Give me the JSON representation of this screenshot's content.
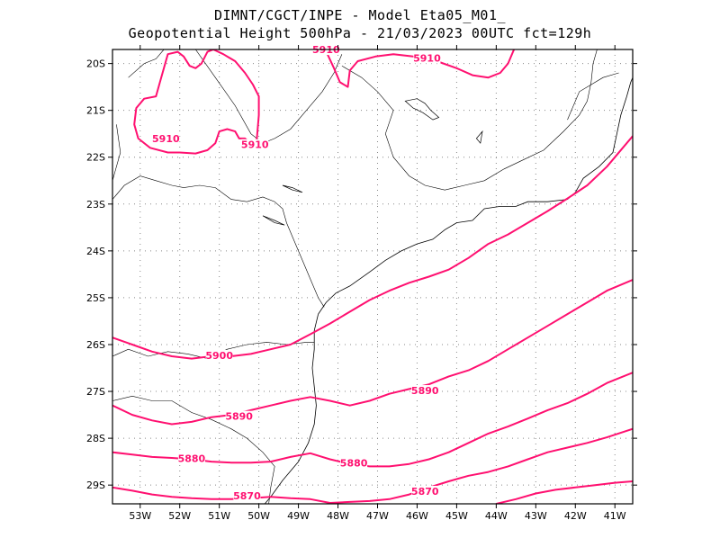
{
  "title": {
    "line1": "DIMNT/CGCT/INPE  -   Model Eta05_M01_",
    "line2": "Geopotential Height 500hPa -   21/03/2023 00UTC fct=129h"
  },
  "colors": {
    "contour": "#ff1070",
    "coast": "#000000",
    "grid": "#888888"
  },
  "axes": {
    "lon_ticks": [
      "53W",
      "52W",
      "51W",
      "50W",
      "49W",
      "48W",
      "47W",
      "46W",
      "45W",
      "44W",
      "43W",
      "42W",
      "41W"
    ],
    "lat_ticks": [
      "20S",
      "21S",
      "22S",
      "23S",
      "24S",
      "25S",
      "26S",
      "27S",
      "28S",
      "29S"
    ],
    "lon_range": [
      -53.7,
      -40.55
    ],
    "lat_range": [
      -29.4,
      -19.7
    ]
  },
  "contour_labels": [
    {
      "text": "5910",
      "lon": -52.35,
      "lat": -21.62
    },
    {
      "text": "5910",
      "lon": -50.1,
      "lat": -21.75
    },
    {
      "text": "5910",
      "lon": -48.3,
      "lat": -19.72
    },
    {
      "text": "5910",
      "lon": -45.75,
      "lat": -19.9
    },
    {
      "text": "5900",
      "lon": -51.0,
      "lat": -26.25
    },
    {
      "text": "5890",
      "lon": -45.8,
      "lat": -27.0
    },
    {
      "text": "5890",
      "lon": -50.5,
      "lat": -27.55
    },
    {
      "text": "5880",
      "lon": -51.7,
      "lat": -28.45
    },
    {
      "text": "5880",
      "lon": -47.6,
      "lat": -28.55
    },
    {
      "text": "5870",
      "lon": -50.3,
      "lat": -29.25
    },
    {
      "text": "5870",
      "lon": -45.8,
      "lat": -29.15
    }
  ],
  "contours": [
    {
      "value": 5910,
      "points": [
        [
          -51.15,
          -19.7
        ],
        [
          -51.3,
          -19.75
        ],
        [
          -51.45,
          -20.0
        ],
        [
          -51.6,
          -20.1
        ],
        [
          -51.75,
          -20.05
        ],
        [
          -51.9,
          -19.85
        ],
        [
          -52.05,
          -19.75
        ],
        [
          -52.3,
          -19.8
        ],
        [
          -52.5,
          -20.4
        ],
        [
          -52.6,
          -20.7
        ],
        [
          -52.9,
          -20.75
        ],
        [
          -53.1,
          -20.95
        ],
        [
          -53.15,
          -21.3
        ],
        [
          -53.05,
          -21.6
        ],
        [
          -52.75,
          -21.8
        ],
        [
          -52.3,
          -21.9
        ],
        [
          -52.0,
          -21.9
        ],
        [
          -51.6,
          -21.92
        ],
        [
          -51.3,
          -21.85
        ],
        [
          -51.1,
          -21.7
        ],
        [
          -51.0,
          -21.45
        ],
        [
          -50.8,
          -21.4
        ],
        [
          -50.6,
          -21.45
        ],
        [
          -50.5,
          -21.6
        ],
        [
          -50.35,
          -21.6
        ],
        [
          -50.15,
          -21.75
        ],
        [
          -50.05,
          -21.6
        ],
        [
          -50.0,
          -21.1
        ],
        [
          -50.0,
          -20.7
        ],
        [
          -50.15,
          -20.45
        ],
        [
          -50.35,
          -20.2
        ],
        [
          -50.6,
          -19.95
        ],
        [
          -50.9,
          -19.8
        ],
        [
          -51.15,
          -19.7
        ]
      ]
    },
    {
      "value": 5910,
      "points": [
        [
          -48.35,
          -19.65
        ],
        [
          -48.1,
          -20.1
        ],
        [
          -47.95,
          -20.4
        ],
        [
          -47.75,
          -20.5
        ],
        [
          -47.7,
          -20.15
        ],
        [
          -47.5,
          -19.95
        ],
        [
          -47.05,
          -19.85
        ],
        [
          -46.6,
          -19.8
        ],
        [
          -46.1,
          -19.85
        ],
        [
          -45.5,
          -19.95
        ],
        [
          -45.0,
          -20.1
        ],
        [
          -44.6,
          -20.25
        ],
        [
          -44.2,
          -20.3
        ],
        [
          -43.9,
          -20.2
        ],
        [
          -43.7,
          -20.0
        ],
        [
          -43.55,
          -19.7
        ]
      ]
    },
    {
      "value": 5900,
      "points": [
        [
          -53.7,
          -25.85
        ],
        [
          -53.2,
          -26.0
        ],
        [
          -52.7,
          -26.15
        ],
        [
          -52.2,
          -26.25
        ],
        [
          -51.7,
          -26.3
        ],
        [
          -51.2,
          -26.25
        ],
        [
          -50.7,
          -26.25
        ],
        [
          -50.2,
          -26.2
        ],
        [
          -49.7,
          -26.1
        ],
        [
          -49.2,
          -26.0
        ],
        [
          -48.7,
          -25.78
        ],
        [
          -48.2,
          -25.55
        ],
        [
          -47.7,
          -25.3
        ],
        [
          -47.2,
          -25.05
        ],
        [
          -46.7,
          -24.85
        ],
        [
          -46.2,
          -24.68
        ],
        [
          -45.7,
          -24.55
        ],
        [
          -45.2,
          -24.4
        ],
        [
          -44.7,
          -24.15
        ],
        [
          -44.2,
          -23.85
        ],
        [
          -43.7,
          -23.65
        ],
        [
          -43.2,
          -23.4
        ],
        [
          -42.7,
          -23.15
        ],
        [
          -42.2,
          -22.88
        ],
        [
          -41.7,
          -22.6
        ],
        [
          -41.2,
          -22.2
        ],
        [
          -40.8,
          -21.8
        ],
        [
          -40.55,
          -21.55
        ]
      ]
    },
    {
      "value": 5890,
      "points": [
        [
          -53.7,
          -27.3
        ],
        [
          -53.2,
          -27.5
        ],
        [
          -52.7,
          -27.62
        ],
        [
          -52.2,
          -27.7
        ],
        [
          -51.7,
          -27.65
        ],
        [
          -51.2,
          -27.55
        ],
        [
          -50.7,
          -27.5
        ],
        [
          -50.2,
          -27.4
        ],
        [
          -49.7,
          -27.3
        ],
        [
          -49.2,
          -27.2
        ],
        [
          -48.7,
          -27.12
        ],
        [
          -48.2,
          -27.2
        ],
        [
          -47.7,
          -27.3
        ],
        [
          -47.2,
          -27.2
        ],
        [
          -46.7,
          -27.05
        ],
        [
          -46.2,
          -26.95
        ],
        [
          -45.7,
          -26.85
        ],
        [
          -45.2,
          -26.68
        ],
        [
          -44.7,
          -26.55
        ],
        [
          -44.2,
          -26.35
        ],
        [
          -43.7,
          -26.1
        ],
        [
          -43.2,
          -25.85
        ],
        [
          -42.7,
          -25.6
        ],
        [
          -42.2,
          -25.35
        ],
        [
          -41.7,
          -25.1
        ],
        [
          -41.2,
          -24.85
        ],
        [
          -40.55,
          -24.62
        ]
      ]
    },
    {
      "value": 5880,
      "points": [
        [
          -53.7,
          -28.3
        ],
        [
          -53.2,
          -28.35
        ],
        [
          -52.7,
          -28.4
        ],
        [
          -52.2,
          -28.42
        ],
        [
          -51.7,
          -28.45
        ],
        [
          -51.2,
          -28.5
        ],
        [
          -50.7,
          -28.52
        ],
        [
          -50.2,
          -28.52
        ],
        [
          -49.7,
          -28.5
        ],
        [
          -49.2,
          -28.4
        ],
        [
          -48.7,
          -28.32
        ],
        [
          -48.2,
          -28.45
        ],
        [
          -47.7,
          -28.55
        ],
        [
          -47.2,
          -28.6
        ],
        [
          -46.7,
          -28.6
        ],
        [
          -46.2,
          -28.55
        ],
        [
          -45.7,
          -28.45
        ],
        [
          -45.2,
          -28.3
        ],
        [
          -44.7,
          -28.1
        ],
        [
          -44.2,
          -27.9
        ],
        [
          -43.7,
          -27.75
        ],
        [
          -43.2,
          -27.58
        ],
        [
          -42.7,
          -27.4
        ],
        [
          -42.2,
          -27.25
        ],
        [
          -41.7,
          -27.05
        ],
        [
          -41.2,
          -26.82
        ],
        [
          -40.55,
          -26.6
        ]
      ]
    },
    {
      "value": 5870,
      "points": [
        [
          -53.7,
          -29.05
        ],
        [
          -53.2,
          -29.12
        ],
        [
          -52.7,
          -29.2
        ],
        [
          -52.2,
          -29.25
        ],
        [
          -51.7,
          -29.28
        ],
        [
          -51.2,
          -29.3
        ],
        [
          -50.7,
          -29.3
        ],
        [
          -50.2,
          -29.28
        ],
        [
          -49.7,
          -29.25
        ],
        [
          -49.2,
          -29.28
        ],
        [
          -48.7,
          -29.3
        ],
        [
          -48.2,
          -29.38
        ],
        [
          -47.7,
          -29.36
        ],
        [
          -47.2,
          -29.34
        ],
        [
          -46.7,
          -29.3
        ],
        [
          -46.2,
          -29.2
        ],
        [
          -45.7,
          -29.05
        ],
        [
          -45.2,
          -28.92
        ],
        [
          -44.7,
          -28.8
        ],
        [
          -44.2,
          -28.72
        ],
        [
          -43.7,
          -28.6
        ],
        [
          -43.2,
          -28.45
        ],
        [
          -42.7,
          -28.3
        ],
        [
          -42.2,
          -28.2
        ],
        [
          -41.7,
          -28.1
        ],
        [
          -41.2,
          -27.98
        ],
        [
          -40.55,
          -27.8
        ]
      ]
    },
    {
      "value": 5870,
      "points": [
        [
          -44.0,
          -29.4
        ],
        [
          -43.5,
          -29.3
        ],
        [
          -43.0,
          -29.18
        ],
        [
          -42.5,
          -29.1
        ],
        [
          -42.0,
          -29.05
        ],
        [
          -41.5,
          -29.0
        ],
        [
          -41.0,
          -28.95
        ],
        [
          -40.55,
          -28.92
        ]
      ]
    }
  ],
  "coastline": [
    [
      -48.5,
      -25.35
    ],
    [
      -48.3,
      -25.1
    ],
    [
      -48.05,
      -24.9
    ],
    [
      -47.7,
      -24.75
    ],
    [
      -47.2,
      -24.45
    ],
    [
      -46.8,
      -24.2
    ],
    [
      -46.4,
      -24.0
    ],
    [
      -46.0,
      -23.85
    ],
    [
      -45.6,
      -23.75
    ],
    [
      -45.3,
      -23.55
    ],
    [
      -45.0,
      -23.4
    ],
    [
      -44.6,
      -23.35
    ],
    [
      -44.3,
      -23.1
    ],
    [
      -43.9,
      -23.05
    ],
    [
      -43.5,
      -23.05
    ],
    [
      -43.2,
      -22.95
    ],
    [
      -42.7,
      -22.95
    ],
    [
      -42.2,
      -22.9
    ],
    [
      -42.0,
      -22.75
    ],
    [
      -41.8,
      -22.45
    ],
    [
      -41.4,
      -22.2
    ],
    [
      -41.05,
      -21.9
    ],
    [
      -40.95,
      -21.5
    ],
    [
      -40.85,
      -21.1
    ],
    [
      -40.7,
      -20.7
    ],
    [
      -40.6,
      -20.4
    ],
    [
      -40.55,
      -20.3
    ]
  ],
  "coastline_south": [
    [
      -48.5,
      -25.35
    ],
    [
      -48.6,
      -25.7
    ],
    [
      -48.6,
      -26.1
    ],
    [
      -48.65,
      -26.5
    ],
    [
      -48.6,
      -26.9
    ],
    [
      -48.55,
      -27.3
    ],
    [
      -48.6,
      -27.7
    ],
    [
      -48.75,
      -28.1
    ],
    [
      -49.0,
      -28.5
    ],
    [
      -49.4,
      -28.9
    ],
    [
      -49.7,
      -29.25
    ],
    [
      -49.85,
      -29.4
    ]
  ],
  "borders": [
    [
      [
        -53.7,
        -22.9
      ],
      [
        -53.4,
        -22.6
      ],
      [
        -53.0,
        -22.4
      ],
      [
        -52.6,
        -22.5
      ],
      [
        -52.2,
        -22.6
      ],
      [
        -51.9,
        -22.65
      ],
      [
        -51.5,
        -22.6
      ],
      [
        -51.1,
        -22.65
      ],
      [
        -50.7,
        -22.9
      ],
      [
        -50.3,
        -22.95
      ],
      [
        -49.9,
        -22.85
      ],
      [
        -49.6,
        -22.95
      ],
      [
        -49.4,
        -23.1
      ],
      [
        -49.3,
        -23.4
      ],
      [
        -49.1,
        -23.8
      ],
      [
        -48.9,
        -24.2
      ],
      [
        -48.7,
        -24.6
      ],
      [
        -48.5,
        -25.0
      ],
      [
        -48.35,
        -25.2
      ]
    ],
    [
      [
        -53.7,
        -26.25
      ],
      [
        -53.3,
        -26.1
      ],
      [
        -52.8,
        -26.25
      ],
      [
        -52.3,
        -26.15
      ],
      [
        -51.8,
        -26.2
      ],
      [
        -51.3,
        -26.3
      ],
      [
        -50.8,
        -26.1
      ],
      [
        -50.3,
        -26.0
      ],
      [
        -49.8,
        -25.95
      ],
      [
        -49.3,
        -26.0
      ],
      [
        -48.8,
        -25.95
      ],
      [
        -48.6,
        -25.95
      ]
    ],
    [
      [
        -53.7,
        -27.2
      ],
      [
        -53.2,
        -27.1
      ],
      [
        -52.7,
        -27.2
      ],
      [
        -52.2,
        -27.2
      ],
      [
        -51.7,
        -27.45
      ],
      [
        -51.2,
        -27.6
      ],
      [
        -50.7,
        -27.8
      ],
      [
        -50.3,
        -28.0
      ],
      [
        -49.9,
        -28.3
      ],
      [
        -49.6,
        -28.6
      ],
      [
        -49.7,
        -29.05
      ],
      [
        -49.75,
        -29.4
      ]
    ],
    [
      [
        -51.6,
        -19.7
      ],
      [
        -51.1,
        -20.3
      ],
      [
        -50.6,
        -20.9
      ],
      [
        -50.2,
        -21.5
      ],
      [
        -49.9,
        -21.7
      ],
      [
        -49.6,
        -21.6
      ],
      [
        -49.2,
        -21.4
      ],
      [
        -48.8,
        -21.0
      ],
      [
        -48.4,
        -20.6
      ],
      [
        -48.1,
        -20.2
      ],
      [
        -47.9,
        -19.8
      ]
    ],
    [
      [
        -47.9,
        -20.05
      ],
      [
        -47.4,
        -20.3
      ],
      [
        -47.0,
        -20.6
      ],
      [
        -46.6,
        -21.0
      ],
      [
        -46.8,
        -21.5
      ],
      [
        -46.6,
        -22.0
      ],
      [
        -46.2,
        -22.4
      ],
      [
        -45.8,
        -22.6
      ],
      [
        -45.3,
        -22.7
      ],
      [
        -44.8,
        -22.6
      ],
      [
        -44.3,
        -22.5
      ],
      [
        -43.8,
        -22.25
      ],
      [
        -43.3,
        -22.05
      ],
      [
        -42.8,
        -21.85
      ],
      [
        -42.3,
        -21.45
      ],
      [
        -41.9,
        -21.1
      ],
      [
        -41.7,
        -20.8
      ],
      [
        -41.6,
        -20.4
      ],
      [
        -41.55,
        -20.0
      ],
      [
        -41.45,
        -19.7
      ]
    ],
    [
      [
        -42.2,
        -21.2
      ],
      [
        -41.9,
        -20.6
      ],
      [
        -41.3,
        -20.3
      ],
      [
        -40.9,
        -20.2
      ]
    ],
    [
      [
        -53.3,
        -20.3
      ],
      [
        -52.9,
        -20.0
      ],
      [
        -52.6,
        -19.9
      ],
      [
        -52.4,
        -19.7
      ]
    ],
    [
      [
        -53.7,
        -22.5
      ],
      [
        -53.5,
        -21.9
      ],
      [
        -53.6,
        -21.3
      ]
    ]
  ],
  "lakes": [
    [
      [
        -46.3,
        -20.8
      ],
      [
        -46.0,
        -20.75
      ],
      [
        -45.8,
        -20.85
      ],
      [
        -45.65,
        -21.0
      ],
      [
        -45.45,
        -21.15
      ],
      [
        -45.6,
        -21.2
      ],
      [
        -45.85,
        -21.05
      ],
      [
        -46.1,
        -20.95
      ],
      [
        -46.3,
        -20.8
      ]
    ],
    [
      [
        -49.4,
        -22.6
      ],
      [
        -49.15,
        -22.65
      ],
      [
        -48.9,
        -22.75
      ],
      [
        -49.15,
        -22.7
      ],
      [
        -49.4,
        -22.6
      ]
    ],
    [
      [
        -49.9,
        -23.25
      ],
      [
        -49.6,
        -23.35
      ],
      [
        -49.35,
        -23.45
      ],
      [
        -49.6,
        -23.4
      ],
      [
        -49.9,
        -23.25
      ]
    ],
    [
      [
        -44.5,
        -21.6
      ],
      [
        -44.35,
        -21.45
      ],
      [
        -44.4,
        -21.7
      ],
      [
        -44.5,
        -21.6
      ]
    ]
  ]
}
